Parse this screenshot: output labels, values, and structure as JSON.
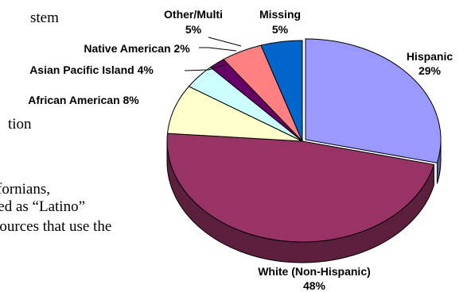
{
  "background_text": [
    "stem",
    "tion",
    "fornians,",
    "ied as “Latino”",
    "sources that use the"
  ],
  "chart_data": {
    "type": "pie",
    "style": "3d-exploded",
    "categories": [
      "Hispanic",
      "White (Non-Hispanic)",
      "African American",
      "Asian Pacific Island",
      "Native American",
      "Other/Multi",
      "Missing"
    ],
    "values": [
      29,
      48,
      8,
      4,
      2,
      5,
      5
    ],
    "labels": [
      [
        "Hispanic",
        "29%"
      ],
      [
        "White (Non-Hispanic)",
        "48%"
      ],
      [
        "African American 8%"
      ],
      [
        "Asian Pacific Island 4%"
      ],
      [
        "Native American 2%"
      ],
      [
        "Other/Multi",
        "5%"
      ],
      [
        "Missing",
        "5%"
      ]
    ],
    "colors": [
      "#9999ff",
      "#993366",
      "#ffffcc",
      "#ccffff",
      "#660066",
      "#ff8080",
      "#0066cc"
    ],
    "exploded": "Hispanic",
    "legend": "none"
  }
}
